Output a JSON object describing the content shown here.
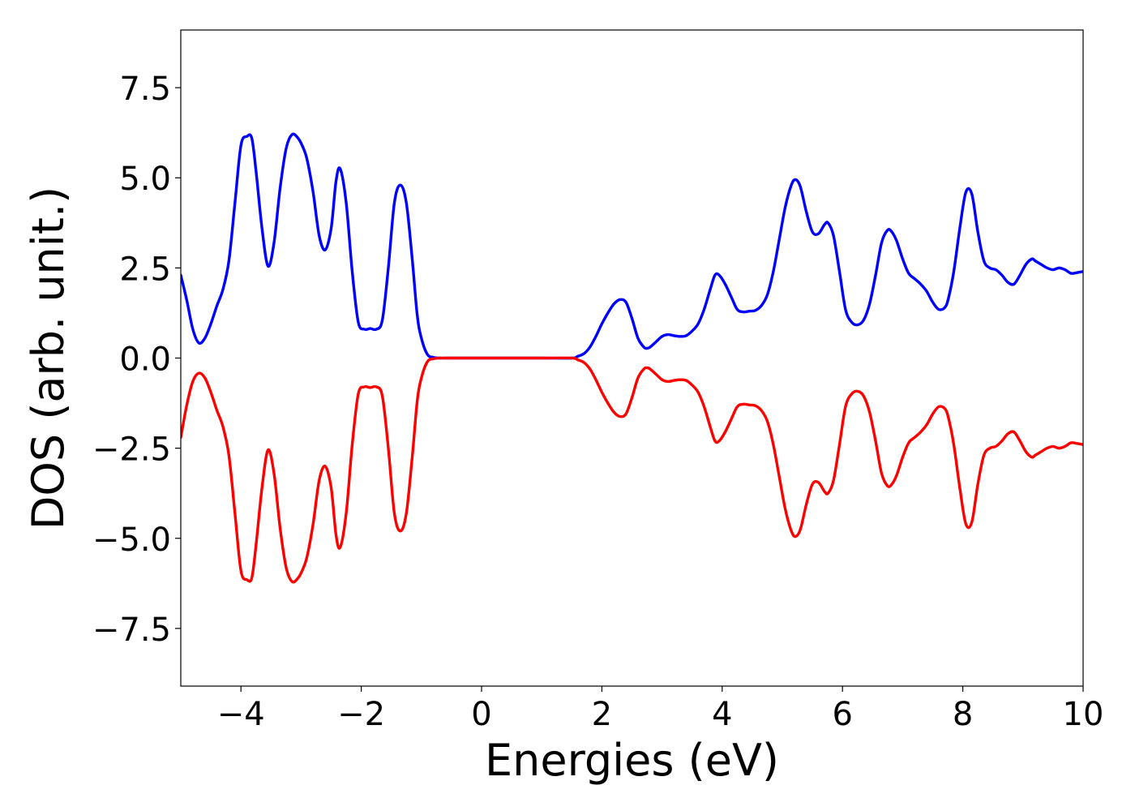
{
  "chart_data": {
    "type": "line",
    "title": "",
    "xlabel": "Energies (eV)",
    "ylabel": "DOS (arb. unit.)",
    "xlim": [
      -5,
      10
    ],
    "ylim": [
      -9.1,
      9.1
    ],
    "xticks": [
      -4,
      -2,
      0,
      2,
      4,
      6,
      8,
      10
    ],
    "yticks": [
      -7.5,
      -5.0,
      -2.5,
      0.0,
      2.5,
      5.0,
      7.5
    ],
    "xtick_labels": [
      "−4",
      "−2",
      "0",
      "2",
      "4",
      "6",
      "8",
      "10"
    ],
    "ytick_labels": [
      "−7.5",
      "−5.0",
      "−2.5",
      "0.0",
      "2.5",
      "5.0",
      "7.5"
    ],
    "grid": false,
    "legend": "none",
    "series": [
      {
        "color": "#0000ff",
        "x": [
          -5.0,
          -4.9,
          -4.8,
          -4.7,
          -4.6,
          -4.5,
          -4.4,
          -4.3,
          -4.2,
          -4.1,
          -4.0,
          -3.9,
          -3.82,
          -3.75,
          -3.65,
          -3.55,
          -3.45,
          -3.35,
          -3.25,
          -3.15,
          -3.05,
          -2.97,
          -2.9,
          -2.8,
          -2.7,
          -2.6,
          -2.5,
          -2.42,
          -2.35,
          -2.25,
          -2.15,
          -2.05,
          -1.95,
          -1.85,
          -1.75,
          -1.65,
          -1.55,
          -1.45,
          -1.35,
          -1.25,
          -1.15,
          -1.07,
          -1.0,
          -0.9,
          -0.8,
          -0.7,
          -0.6,
          -0.5,
          -0.4,
          0.0,
          0.5,
          1.0,
          1.5,
          1.6,
          1.7,
          1.8,
          1.9,
          2.0,
          2.1,
          2.2,
          2.3,
          2.4,
          2.5,
          2.6,
          2.7,
          2.75,
          2.8,
          2.9,
          3.0,
          3.1,
          3.2,
          3.3,
          3.4,
          3.5,
          3.6,
          3.7,
          3.8,
          3.88,
          3.95,
          4.05,
          4.15,
          4.25,
          4.35,
          4.45,
          4.55,
          4.65,
          4.75,
          4.85,
          4.95,
          5.05,
          5.15,
          5.22,
          5.3,
          5.4,
          5.5,
          5.6,
          5.7,
          5.76,
          5.85,
          5.95,
          6.05,
          6.15,
          6.25,
          6.35,
          6.45,
          6.55,
          6.65,
          6.75,
          6.82,
          6.9,
          7.0,
          7.1,
          7.2,
          7.3,
          7.4,
          7.5,
          7.6,
          7.7,
          7.76,
          7.85,
          7.95,
          8.05,
          8.15,
          8.25,
          8.35,
          8.45,
          8.55,
          8.65,
          8.75,
          8.85,
          8.95,
          9.05,
          9.15,
          9.2,
          9.3,
          9.4,
          9.5,
          9.6,
          9.7,
          9.8,
          9.9,
          10.0
        ],
        "y": [
          2.3,
          1.6,
          0.8,
          0.42,
          0.55,
          0.95,
          1.45,
          1.9,
          2.7,
          4.3,
          5.9,
          6.15,
          6.1,
          5.2,
          3.6,
          2.55,
          3.2,
          4.7,
          5.8,
          6.2,
          6.1,
          5.85,
          5.5,
          4.6,
          3.4,
          3.0,
          3.6,
          4.9,
          5.25,
          4.3,
          2.4,
          1.0,
          0.8,
          0.82,
          0.8,
          1.05,
          2.5,
          4.3,
          4.8,
          4.3,
          2.7,
          1.2,
          0.55,
          0.1,
          0.02,
          0.0,
          0.0,
          0.0,
          0.0,
          0.0,
          0.0,
          0.0,
          0.0,
          0.05,
          0.12,
          0.3,
          0.6,
          0.95,
          1.25,
          1.5,
          1.62,
          1.55,
          1.1,
          0.55,
          0.3,
          0.27,
          0.3,
          0.45,
          0.6,
          0.65,
          0.62,
          0.6,
          0.62,
          0.75,
          0.95,
          1.35,
          1.9,
          2.3,
          2.3,
          2.05,
          1.7,
          1.35,
          1.28,
          1.3,
          1.32,
          1.45,
          1.75,
          2.4,
          3.3,
          4.2,
          4.8,
          4.95,
          4.75,
          4.05,
          3.5,
          3.45,
          3.7,
          3.75,
          3.4,
          2.4,
          1.35,
          1.0,
          0.92,
          1.05,
          1.5,
          2.3,
          3.2,
          3.55,
          3.5,
          3.25,
          2.75,
          2.35,
          2.2,
          2.05,
          1.85,
          1.55,
          1.35,
          1.4,
          1.65,
          2.4,
          3.6,
          4.6,
          4.55,
          3.5,
          2.7,
          2.5,
          2.45,
          2.3,
          2.1,
          2.05,
          2.3,
          2.6,
          2.75,
          2.7,
          2.6,
          2.5,
          2.45,
          2.5,
          2.45,
          2.35,
          2.37,
          2.4
        ]
      },
      {
        "color": "#ff0000",
        "x": [
          -5.0,
          -4.9,
          -4.8,
          -4.7,
          -4.6,
          -4.5,
          -4.4,
          -4.3,
          -4.2,
          -4.1,
          -4.0,
          -3.9,
          -3.82,
          -3.75,
          -3.65,
          -3.55,
          -3.45,
          -3.35,
          -3.25,
          -3.15,
          -3.05,
          -2.97,
          -2.9,
          -2.8,
          -2.7,
          -2.6,
          -2.5,
          -2.42,
          -2.35,
          -2.25,
          -2.15,
          -2.05,
          -1.95,
          -1.85,
          -1.75,
          -1.65,
          -1.55,
          -1.45,
          -1.35,
          -1.25,
          -1.15,
          -1.07,
          -1.0,
          -0.9,
          -0.8,
          -0.7,
          -0.6,
          -0.5,
          -0.4,
          0.0,
          0.5,
          1.0,
          1.5,
          1.6,
          1.7,
          1.8,
          1.9,
          2.0,
          2.1,
          2.2,
          2.3,
          2.4,
          2.5,
          2.6,
          2.7,
          2.75,
          2.8,
          2.9,
          3.0,
          3.1,
          3.2,
          3.3,
          3.4,
          3.5,
          3.6,
          3.7,
          3.8,
          3.88,
          3.95,
          4.05,
          4.15,
          4.25,
          4.35,
          4.45,
          4.55,
          4.65,
          4.75,
          4.85,
          4.95,
          5.05,
          5.15,
          5.22,
          5.3,
          5.4,
          5.5,
          5.6,
          5.7,
          5.76,
          5.85,
          5.95,
          6.05,
          6.15,
          6.25,
          6.35,
          6.45,
          6.55,
          6.65,
          6.75,
          6.82,
          6.9,
          7.0,
          7.1,
          7.2,
          7.3,
          7.4,
          7.5,
          7.6,
          7.7,
          7.76,
          7.85,
          7.95,
          8.05,
          8.15,
          8.25,
          8.35,
          8.45,
          8.55,
          8.65,
          8.75,
          8.85,
          8.95,
          9.05,
          9.15,
          9.2,
          9.3,
          9.4,
          9.5,
          9.6,
          9.7,
          9.8,
          9.9,
          10.0
        ],
        "y": [
          -2.2,
          -1.3,
          -0.65,
          -0.42,
          -0.55,
          -0.95,
          -1.45,
          -1.9,
          -2.7,
          -4.3,
          -5.9,
          -6.15,
          -6.1,
          -5.2,
          -3.6,
          -2.55,
          -3.2,
          -4.7,
          -5.8,
          -6.2,
          -6.1,
          -5.85,
          -5.5,
          -4.6,
          -3.4,
          -3.0,
          -3.6,
          -4.9,
          -5.25,
          -4.3,
          -2.4,
          -1.0,
          -0.8,
          -0.82,
          -0.8,
          -1.05,
          -2.5,
          -4.3,
          -4.8,
          -4.3,
          -2.7,
          -1.2,
          -0.55,
          -0.1,
          -0.02,
          0.0,
          0.0,
          0.0,
          0.0,
          0.0,
          0.0,
          0.0,
          0.0,
          -0.05,
          -0.12,
          -0.3,
          -0.6,
          -0.95,
          -1.25,
          -1.5,
          -1.62,
          -1.55,
          -1.1,
          -0.55,
          -0.3,
          -0.27,
          -0.3,
          -0.45,
          -0.6,
          -0.65,
          -0.62,
          -0.6,
          -0.62,
          -0.75,
          -0.95,
          -1.35,
          -1.9,
          -2.3,
          -2.3,
          -2.05,
          -1.7,
          -1.35,
          -1.28,
          -1.3,
          -1.32,
          -1.45,
          -1.75,
          -2.4,
          -3.3,
          -4.2,
          -4.8,
          -4.95,
          -4.75,
          -4.05,
          -3.5,
          -3.45,
          -3.7,
          -3.75,
          -3.4,
          -2.4,
          -1.35,
          -1.0,
          -0.92,
          -1.05,
          -1.5,
          -2.3,
          -3.2,
          -3.55,
          -3.5,
          -3.25,
          -2.75,
          -2.35,
          -2.2,
          -2.05,
          -1.85,
          -1.55,
          -1.35,
          -1.4,
          -1.65,
          -2.4,
          -3.6,
          -4.6,
          -4.55,
          -3.5,
          -2.7,
          -2.5,
          -2.45,
          -2.3,
          -2.1,
          -2.05,
          -2.3,
          -2.6,
          -2.75,
          -2.7,
          -2.6,
          -2.5,
          -2.45,
          -2.5,
          -2.45,
          -2.35,
          -2.37,
          -2.4
        ]
      }
    ]
  }
}
